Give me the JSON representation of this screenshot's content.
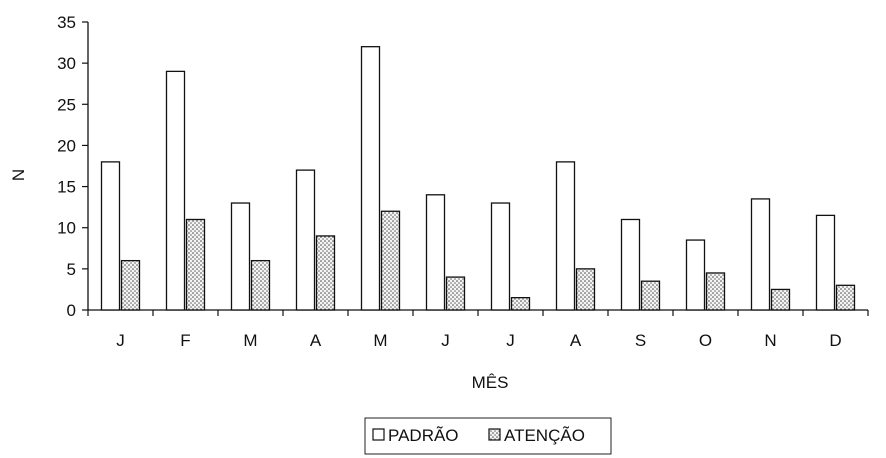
{
  "chart_data": {
    "type": "bar",
    "title": "",
    "xlabel": "MÊS",
    "ylabel": "N",
    "ylim": [
      0,
      35
    ],
    "yticks": [
      0,
      5,
      10,
      15,
      20,
      25,
      30,
      35
    ],
    "categories": [
      "J",
      "F",
      "M",
      "A",
      "M",
      "J",
      "J",
      "A",
      "S",
      "O",
      "N",
      "D"
    ],
    "series": [
      {
        "name": "PADRÃO",
        "values": [
          18,
          29,
          13,
          17,
          32,
          14,
          13,
          18,
          11,
          8.5,
          13.5,
          11.5
        ]
      },
      {
        "name": "ATENÇÃO",
        "values": [
          6,
          11,
          6,
          9,
          12,
          4,
          1.5,
          5,
          3.5,
          4.5,
          2.5,
          3
        ]
      }
    ],
    "legend_position": "bottom",
    "grid": false
  }
}
